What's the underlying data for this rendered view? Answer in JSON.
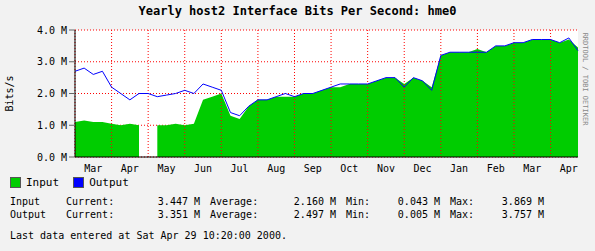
{
  "chart_data": {
    "type": "area",
    "title": "Yearly host2 Interface Bits Per Second: hme0",
    "side_text": "RRDTOOL / TOBI OETIKER",
    "y_label": "Bits/s",
    "categories": [
      null,
      null,
      "Mar",
      null,
      null,
      null,
      "Apr",
      null,
      null,
      null,
      "May",
      null,
      null,
      null,
      "Jun",
      null,
      null,
      null,
      "Jul",
      null,
      null,
      null,
      "Aug",
      null,
      null,
      null,
      "Sep",
      null,
      null,
      null,
      "Oct",
      null,
      null,
      null,
      "Nov",
      null,
      null,
      null,
      "Dec",
      null,
      null,
      null,
      "Jan",
      null,
      null,
      null,
      "Feb",
      null,
      null,
      null,
      "Mar",
      null,
      null,
      null,
      "Apr",
      null
    ],
    "series": [
      {
        "name": "Input",
        "type": "area",
        "color": "#00cc00",
        "values": [
          1.1,
          1.15,
          1.1,
          1.1,
          1.05,
          1.0,
          1.05,
          1.0,
          null,
          1.0,
          1.0,
          1.05,
          1.0,
          1.05,
          1.8,
          1.9,
          2.0,
          1.3,
          1.2,
          1.6,
          1.8,
          1.8,
          1.9,
          1.9,
          1.9,
          2.0,
          2.0,
          2.1,
          2.2,
          2.2,
          2.3,
          2.3,
          2.3,
          2.4,
          2.5,
          2.5,
          2.3,
          2.5,
          2.4,
          2.2,
          3.2,
          3.3,
          3.3,
          3.3,
          3.4,
          3.3,
          3.5,
          3.5,
          3.6,
          3.6,
          3.7,
          3.7,
          3.7,
          3.6,
          3.7,
          3.45
        ]
      },
      {
        "name": "Output",
        "type": "line",
        "color": "#0000ff",
        "values": [
          2.7,
          2.8,
          2.6,
          2.7,
          2.2,
          2.0,
          1.8,
          2.0,
          2.0,
          1.9,
          1.95,
          2.0,
          2.1,
          2.0,
          2.3,
          2.2,
          2.1,
          1.4,
          1.3,
          1.6,
          1.8,
          1.8,
          1.9,
          2.0,
          1.9,
          2.0,
          2.0,
          2.1,
          2.2,
          2.3,
          2.3,
          2.3,
          2.3,
          2.4,
          2.5,
          2.5,
          2.2,
          2.5,
          2.4,
          2.1,
          3.2,
          3.3,
          3.3,
          3.3,
          3.3,
          3.3,
          3.5,
          3.5,
          3.6,
          3.6,
          3.7,
          3.7,
          3.7,
          3.6,
          3.75,
          3.35
        ]
      }
    ],
    "ylim": [
      0,
      4
    ],
    "yticks": [
      {
        "value": 0,
        "label": "0.0 M"
      },
      {
        "value": 1,
        "label": "1.0 M"
      },
      {
        "value": 2,
        "label": "2.0 M"
      },
      {
        "value": 3,
        "label": "3.0 M"
      },
      {
        "value": 4,
        "label": "4.0 M"
      }
    ],
    "grid": true,
    "legend": "bottom",
    "stats": [
      {
        "name": "Input",
        "cells": [
          "Current:",
          "3.447 M",
          "Average:",
          "2.160 M",
          "Min:",
          "0.043 M",
          "Max:",
          "3.869 M"
        ]
      },
      {
        "name": "Output",
        "cells": [
          "Current:",
          "3.351 M",
          "Average:",
          "2.497 M",
          "Min:",
          "0.005 M",
          "Max:",
          "3.757 M"
        ]
      }
    ],
    "footer": "Last data entered at Sat Apr 29 10:20:00 2000."
  }
}
